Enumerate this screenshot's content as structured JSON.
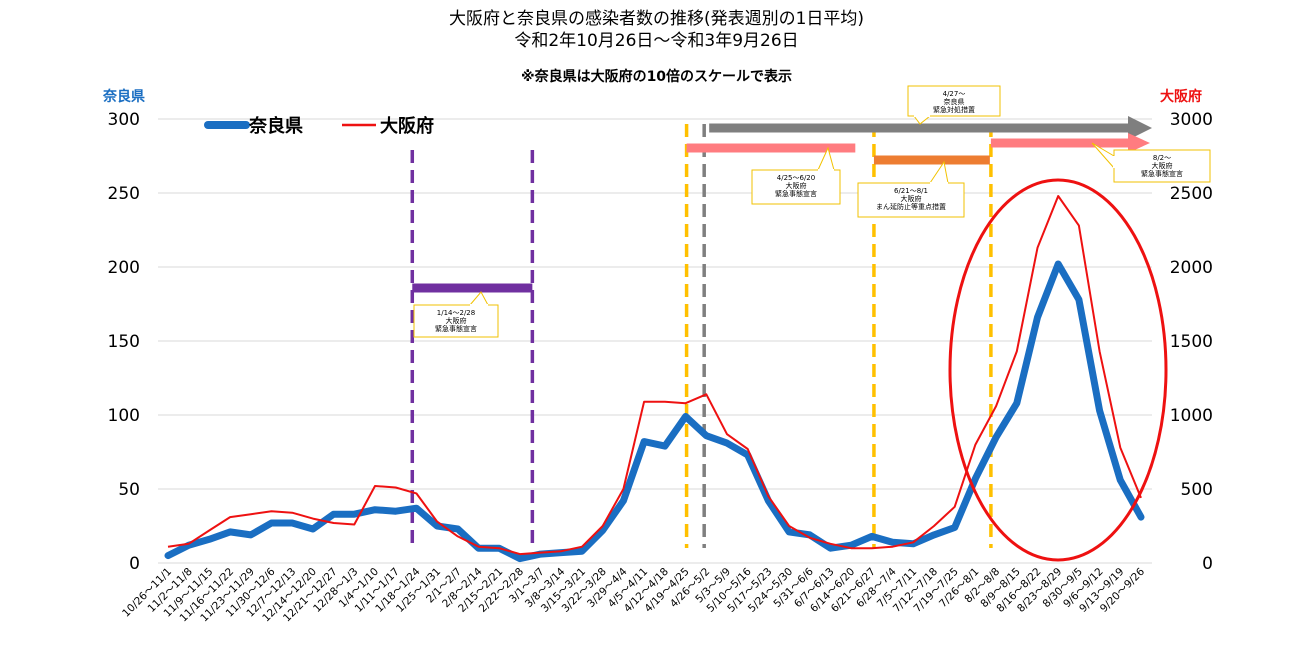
{
  "title_line1": "大阪府と奈良県の感染者数の推移(発表週別の1日平均)",
  "title_line2": "令和2年10月26日～令和3年9月26日",
  "note": "※奈良県は大阪府の10倍のスケールで表示",
  "colors": {
    "nara": "#1a6ec2",
    "osaka": "#ee1111",
    "purple": "#7030a0",
    "gold": "#ffc000",
    "grey": "#7f7f7f",
    "pink": "#ff7c80",
    "orange": "#ed7d31",
    "circle": "#ee1111"
  },
  "chart_data": {
    "type": "line",
    "title": "大阪府と奈良県の感染者数の推移(発表週別の1日平均)",
    "subtitle": "令和2年10月26日～令和3年9月26日",
    "ylabel_left": "奈良県",
    "ylabel_right": "大阪府",
    "ylim_left": [
      0,
      300
    ],
    "ylim_right": [
      0,
      3000
    ],
    "yticks_left": [
      "0",
      "50",
      "100",
      "150",
      "200",
      "250",
      "300"
    ],
    "yticks_right": [
      "0",
      "500",
      "1000",
      "1500",
      "2000",
      "2500",
      "3000"
    ],
    "grid": true,
    "legend_position": "top-left",
    "categories": [
      "10/26～11/1",
      "11/2～11/8",
      "11/9～11/15",
      "11/16～11/22",
      "11/23～11/29",
      "11/30～12/6",
      "12/7～12/13",
      "12/14～12/20",
      "12/21～12/27",
      "12/28～1/3",
      "1/4～1/10",
      "1/11～1/17",
      "1/18～1/24",
      "1/25～1/31",
      "2/1～2/7",
      "2/8～2/14",
      "2/15～2/21",
      "2/22～2/28",
      "3/1～3/7",
      "3/8～3/14",
      "3/15～3/21",
      "3/22～3/28",
      "3/29～4/4",
      "4/5～4/11",
      "4/12～4/18",
      "4/19～4/25",
      "4/26～5/2",
      "5/3～5/9",
      "5/10～5/16",
      "5/17～5/23",
      "5/24～5/30",
      "5/31～6/6",
      "6/7～6/13",
      "6/14～6/20",
      "6/21～6/27",
      "6/28～7/4",
      "7/5～7/11",
      "7/12～7/18",
      "7/19～7/25",
      "7/26～8/1",
      "8/2～8/8",
      "8/9～8/15",
      "8/16～8/22",
      "8/23～8/29",
      "8/30～9/5",
      "9/6～9/12",
      "9/13～9/19",
      "9/20～9/26"
    ],
    "series": [
      {
        "name": "奈良県",
        "axis": "left",
        "values": [
          5,
          12,
          16,
          21,
          19,
          27,
          27,
          23,
          33,
          33,
          36,
          35,
          37,
          25,
          23,
          10,
          10,
          3,
          6,
          7,
          8,
          22,
          42,
          82,
          79,
          99,
          86,
          81,
          73,
          42,
          21,
          19,
          10,
          12,
          18,
          14,
          13,
          19,
          24,
          57,
          85,
          108,
          166,
          202,
          178,
          103,
          56,
          31
        ]
      },
      {
        "name": "大阪府",
        "axis": "right",
        "values": [
          110,
          130,
          220,
          310,
          330,
          350,
          340,
          300,
          270,
          260,
          520,
          510,
          470,
          280,
          180,
          110,
          100,
          60,
          70,
          80,
          110,
          250,
          500,
          1090,
          1090,
          1080,
          1140,
          870,
          770,
          450,
          250,
          170,
          130,
          100,
          100,
          110,
          140,
          250,
          380,
          800,
          1060,
          1430,
          2130,
          2480,
          2280,
          1430,
          780,
          440
        ]
      }
    ],
    "annotations": [
      {
        "text": "1/14～2/28 大阪府 緊急事態宣言"
      },
      {
        "text": "4/25～6/20 大阪府 緊急事態宣言"
      },
      {
        "text": "4/27～ 奈良県 緊急対処措置"
      },
      {
        "text": "6/21～8/1 大阪府 まん延防止等重点措置"
      },
      {
        "text": "8/2～ 大阪府 緊急事態宣言"
      }
    ]
  },
  "callouts": {
    "osaka_se1": [
      "1/14～2/28",
      "大阪府",
      "緊急事態宣言"
    ],
    "osaka_se2": [
      "4/25～6/20",
      "大阪府",
      "緊急事態宣言"
    ],
    "nara_emergency": [
      "4/27～",
      "奈良県",
      "緊急対処措置"
    ],
    "osaka_manbou": [
      "6/21～8/1",
      "大阪府",
      "まん延防止等重点措置"
    ],
    "osaka_se3": [
      "8/2～",
      "大阪府",
      "緊急事態宣言"
    ]
  }
}
